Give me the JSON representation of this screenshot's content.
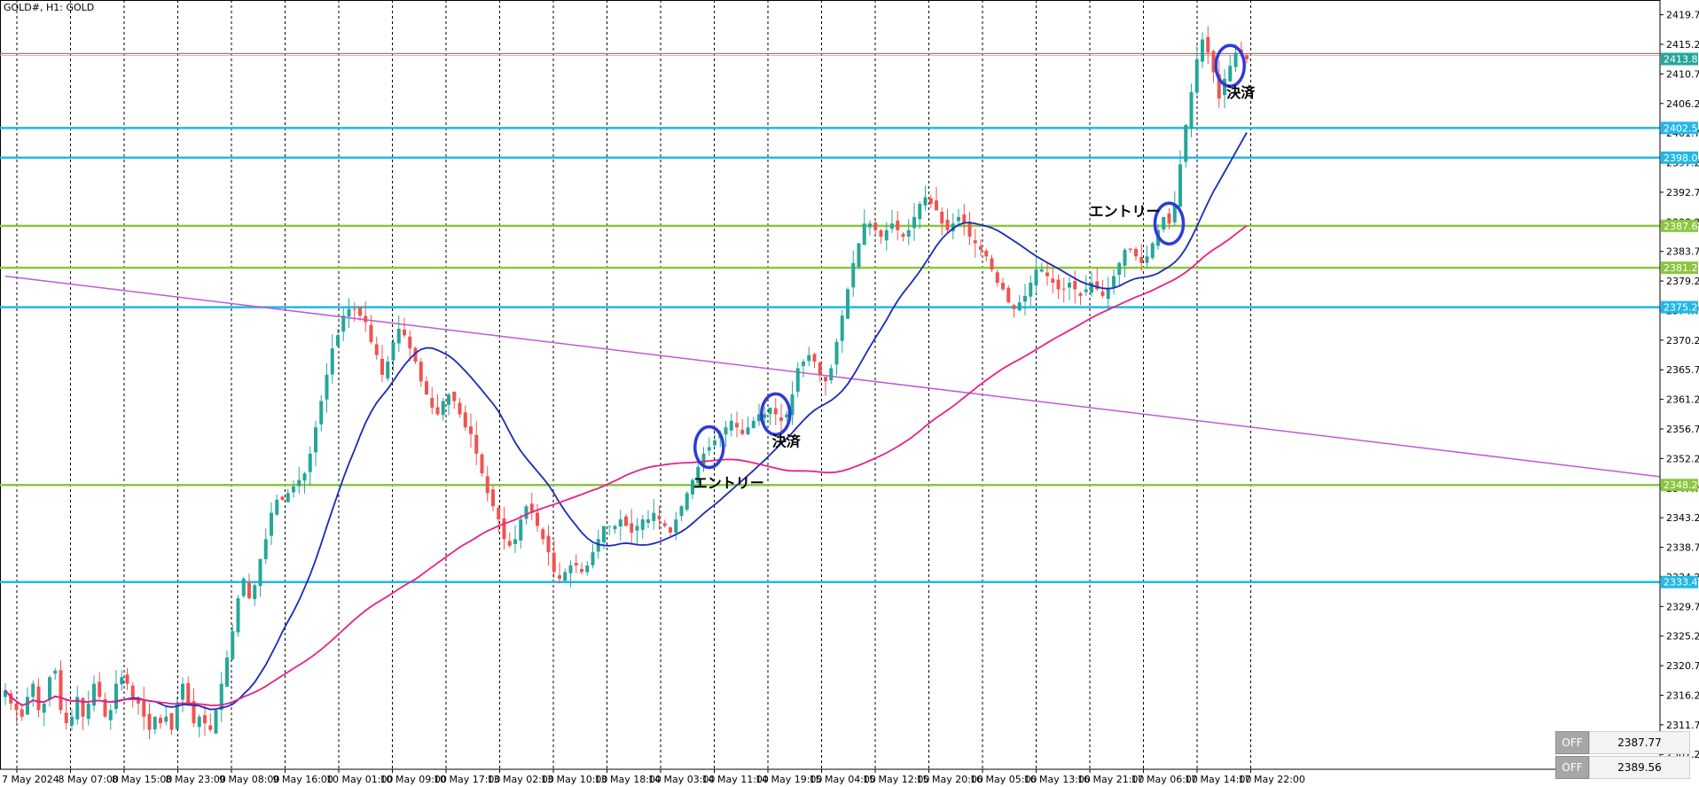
{
  "window": {
    "symbol_label": "GOLD#, H1:  GOLD"
  },
  "colors": {
    "bull": "#26a69a",
    "bear": "#ef5350",
    "ma_fast": "#1a2ab8",
    "ma_slow": "#e6218a",
    "trendline": "#c05ad8",
    "cyan_level": "#21b8e8",
    "green_level": "#8cc63f",
    "circle": "#2e3bd4",
    "bid_line": "#e05050"
  },
  "chart_data": {
    "type": "candlestick",
    "timeframe": "H1",
    "price_axis": {
      "min": 2305,
      "max": 2422,
      "tick_labels": [
        "2419.76",
        "2415.26",
        "2410.76",
        "2406.26",
        "2401.76",
        "2397.26",
        "2392.76",
        "2388.26",
        "2383.76",
        "2379.26",
        "2374.76",
        "2370.26",
        "2365.76",
        "2361.26",
        "2356.76",
        "2352.26",
        "2347.76",
        "2343.26",
        "2338.76",
        "2334.26",
        "2329.76",
        "2325.26",
        "2320.76",
        "2316.26",
        "2311.76",
        "2307.26"
      ]
    },
    "time_axis": {
      "labels": [
        "7 May 2024",
        "8 May 07:00",
        "8 May 15:00",
        "8 May 23:00",
        "9 May 08:00",
        "9 May 16:00",
        "10 May 01:00",
        "10 May 09:00",
        "10 May 17:00",
        "13 May 02:00",
        "13 May 10:00",
        "13 May 18:00",
        "14 May 03:00",
        "14 May 11:00",
        "14 May 19:00",
        "15 May 04:00",
        "15 May 12:00",
        "15 May 20:00",
        "16 May 05:00",
        "16 May 13:00",
        "16 May 21:00",
        "17 May 06:00",
        "17 May 14:00",
        "17 May 22:00"
      ],
      "grid": true
    },
    "horizontal_levels": [
      {
        "price": 2402.54,
        "label": "2402.54",
        "color": "cyan"
      },
      {
        "price": 2398.02,
        "label": "2398.02",
        "color": "cyan"
      },
      {
        "price": 2387.65,
        "label": "2387.65",
        "color": "green"
      },
      {
        "price": 2381.27,
        "label": "2381.27",
        "color": "green"
      },
      {
        "price": 2375.28,
        "label": "2375.28",
        "color": "cyan"
      },
      {
        "price": 2348.24,
        "label": "2348.24",
        "color": "green"
      },
      {
        "price": 2333.48,
        "label": "2333.48",
        "color": "cyan"
      }
    ],
    "current_price": {
      "price": 2413.84,
      "label": "2413.84"
    },
    "trendline": {
      "from": [
        0,
        2380.0
      ],
      "to": [
        240,
        2349.5
      ]
    },
    "candles_closes": [
      2317,
      2315,
      2314,
      2313,
      2316,
      2318,
      2314,
      2315,
      2319,
      2320,
      2314,
      2312,
      2313,
      2316,
      2313,
      2315,
      2318,
      2316,
      2313,
      2314,
      2318,
      2319,
      2318,
      2316,
      2315,
      2313,
      2311,
      2313,
      2312,
      2313,
      2311,
      2315,
      2318,
      2315,
      2312,
      2313,
      2312,
      2311,
      2314,
      2318,
      2322,
      2326,
      2331,
      2334,
      2331,
      2333,
      2337,
      2340,
      2344,
      2346,
      2346,
      2347,
      2348,
      2349,
      2350,
      2353,
      2357,
      2361,
      2365,
      2369,
      2371,
      2374,
      2375,
      2375,
      2374,
      2373,
      2370,
      2368,
      2365,
      2367,
      2370,
      2372,
      2371,
      2369,
      2367,
      2364,
      2362,
      2360,
      2359,
      2361,
      2362,
      2361,
      2359,
      2357,
      2356,
      2353,
      2350,
      2347,
      2345,
      2343,
      2340,
      2339,
      2340,
      2343,
      2345,
      2344,
      2342,
      2340,
      2338,
      2335,
      2334,
      2335,
      2336,
      2336,
      2335,
      2336,
      2338,
      2340,
      2342,
      2342,
      2342,
      2343,
      2342,
      2341,
      2342,
      2343,
      2343,
      2344,
      2343,
      2342,
      2341,
      2343,
      2345,
      2347,
      2349,
      2351,
      2353,
      2354,
      2355,
      2356,
      2357,
      2358,
      2357,
      2356,
      2357,
      2358,
      2359,
      2359,
      2360,
      2359,
      2358,
      2359,
      2362,
      2366,
      2367,
      2368,
      2367,
      2365,
      2364,
      2366,
      2370,
      2374,
      2378,
      2382,
      2385,
      2388,
      2388,
      2387,
      2386,
      2387,
      2388,
      2387,
      2386,
      2387,
      2389,
      2391,
      2392,
      2391,
      2390,
      2388,
      2387,
      2388,
      2389,
      2388,
      2386,
      2385,
      2384,
      2383,
      2381,
      2379,
      2378,
      2376,
      2375,
      2376,
      2377,
      2379,
      2381,
      2381,
      2380,
      2379,
      2378,
      2378,
      2379,
      2378,
      2377,
      2378,
      2379,
      2378,
      2377,
      2378,
      2380,
      2382,
      2384,
      2384,
      2383,
      2382,
      2383,
      2385,
      2387,
      2389,
      2388,
      2391,
      2397,
      2403,
      2408,
      2413,
      2416,
      2414,
      2411,
      2407,
      2410,
      2412,
      2414,
      2414,
      2413
    ],
    "moving_averages": [
      {
        "period": "fast",
        "color": "blue"
      },
      {
        "period": "slow",
        "color": "magenta"
      }
    ],
    "annotations": [
      {
        "text": "エントリー",
        "near_time_index": 127
      },
      {
        "text": "決済",
        "near_time_index": 139
      },
      {
        "text": "エントリー",
        "near_time_index": 210
      },
      {
        "text": "決済",
        "near_time_index": 221
      }
    ]
  },
  "off_panel": {
    "rows": [
      {
        "button": "OFF",
        "value": "2387.77"
      },
      {
        "button": "OFF",
        "value": "2389.56"
      }
    ]
  }
}
